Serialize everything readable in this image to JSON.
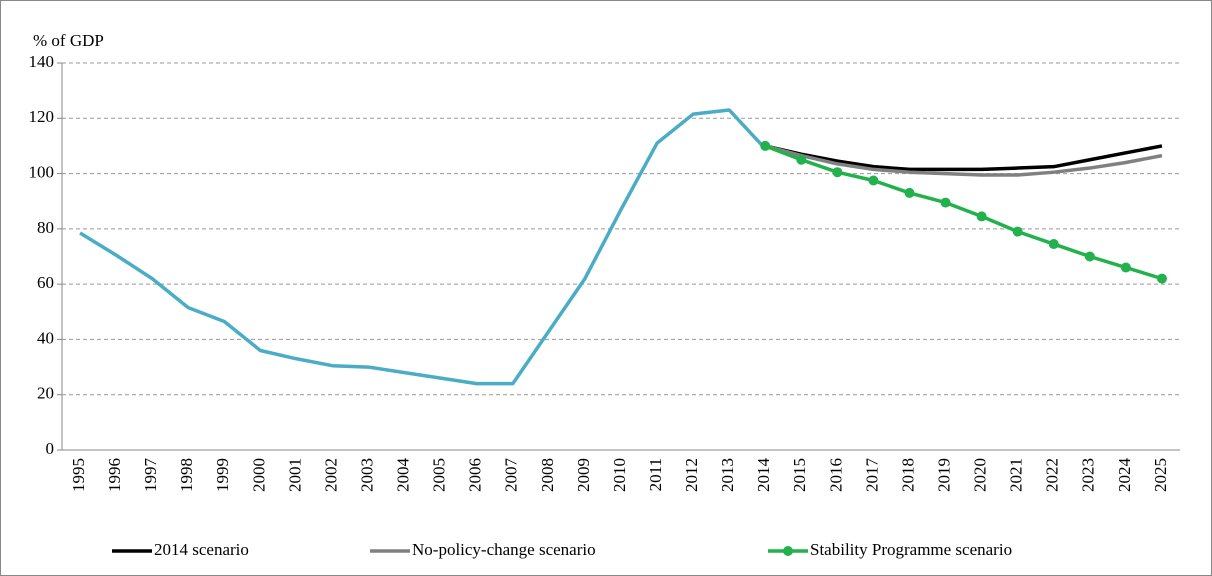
{
  "chart_data": {
    "type": "line",
    "y_label": "% of GDP",
    "categories": [
      "1995",
      "1996",
      "1997",
      "1998",
      "1999",
      "2000",
      "2001",
      "2002",
      "2003",
      "2004",
      "2005",
      "2006",
      "2007",
      "2008",
      "2009",
      "2010",
      "2011",
      "2012",
      "2013",
      "2014",
      "2015",
      "2016",
      "2017",
      "2018",
      "2019",
      "2020",
      "2021",
      "2022",
      "2023",
      "2024",
      "2025"
    ],
    "series": [
      {
        "color": "#4bacc6",
        "values": [
          78.5,
          70.5,
          62,
          51.5,
          46.5,
          36,
          33,
          30.5,
          30,
          28,
          26,
          24,
          24,
          43,
          62,
          87,
          111,
          121.5,
          123,
          109,
          null,
          null,
          null,
          null,
          null,
          null,
          null,
          null,
          null,
          null,
          null
        ]
      },
      {
        "name": "2014 scenario",
        "color": "#000000",
        "values": [
          null,
          null,
          null,
          null,
          null,
          null,
          null,
          null,
          null,
          null,
          null,
          null,
          null,
          null,
          null,
          null,
          null,
          null,
          null,
          110,
          107,
          104.5,
          102.5,
          101.5,
          101.5,
          101.5,
          102,
          102.5,
          105,
          107.5,
          110
        ]
      },
      {
        "name": "No-policy-change scenario",
        "color": "#808080",
        "values": [
          null,
          null,
          null,
          null,
          null,
          null,
          null,
          null,
          null,
          null,
          null,
          null,
          null,
          null,
          null,
          null,
          null,
          null,
          null,
          110,
          106.5,
          103.5,
          101.5,
          100.5,
          100,
          99.5,
          99.5,
          100.5,
          102,
          104,
          106.5
        ]
      },
      {
        "name": "Stability Programme scenario",
        "color": "#22b14c",
        "markers": true,
        "values": [
          null,
          null,
          null,
          null,
          null,
          null,
          null,
          null,
          null,
          null,
          null,
          null,
          null,
          null,
          null,
          null,
          null,
          null,
          null,
          110,
          105,
          100.5,
          97.5,
          93,
          89.5,
          84.5,
          79,
          74.5,
          70,
          66,
          62
        ]
      }
    ],
    "ylim": [
      0,
      140
    ],
    "yticks": [
      0,
      20,
      40,
      60,
      80,
      100,
      120,
      140
    ],
    "grid": true,
    "legend": "bottom"
  }
}
